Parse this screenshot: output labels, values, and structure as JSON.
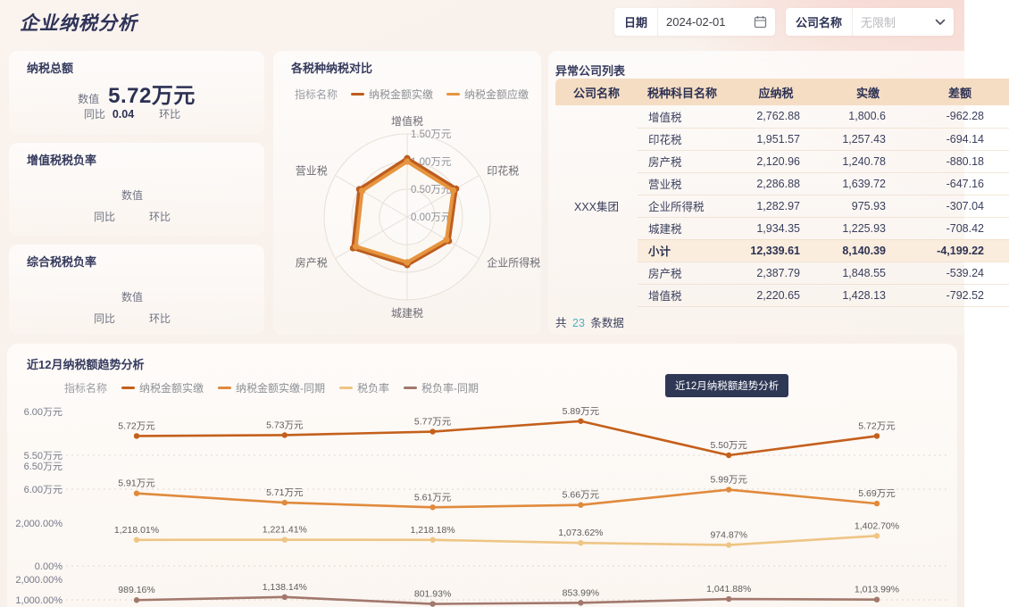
{
  "header": {
    "title": "企业纳税分析",
    "date_label": "日期",
    "date_value": "2024-02-01",
    "company_label": "公司名称",
    "company_value": "无限制"
  },
  "kpi_cards": [
    {
      "title": "纳税总额",
      "value_label": "数值",
      "value": "5.72万元",
      "yoy_label": "同比",
      "yoy_value": "0.04",
      "mom_label": "环比",
      "mom_value": ""
    },
    {
      "title": "增值税税负率",
      "value_label": "数值",
      "value": "",
      "yoy_label": "同比",
      "yoy_value": "",
      "mom_label": "环比",
      "mom_value": ""
    },
    {
      "title": "综合税税负率",
      "value_label": "数值",
      "value": "",
      "yoy_label": "同比",
      "yoy_value": "",
      "mom_label": "环比",
      "mom_value": ""
    }
  ],
  "radar_card": {
    "title": "各税种纳税对比",
    "legend_label": "指标名称"
  },
  "table_card": {
    "title": "异常公司列表",
    "columns": [
      "公司名称",
      "税种科目名称",
      "应纳税",
      "实缴",
      "差额"
    ],
    "company": "XXX集团",
    "rows": [
      {
        "tax": "增值税",
        "due": "2,762.88",
        "paid": "1,800.6",
        "diff": "-962.28"
      },
      {
        "tax": "印花税",
        "due": "1,951.57",
        "paid": "1,257.43",
        "diff": "-694.14"
      },
      {
        "tax": "房产税",
        "due": "2,120.96",
        "paid": "1,240.78",
        "diff": "-880.18"
      },
      {
        "tax": "营业税",
        "due": "2,286.88",
        "paid": "1,639.72",
        "diff": "-647.16"
      },
      {
        "tax": "企业所得税",
        "due": "1,282.97",
        "paid": "975.93",
        "diff": "-307.04"
      },
      {
        "tax": "城建税",
        "due": "1,934.35",
        "paid": "1,225.93",
        "diff": "-708.42"
      },
      {
        "tax": "小计",
        "due": "12,339.61",
        "paid": "8,140.39",
        "diff": "-4,199.22",
        "subtotal": true
      },
      {
        "tax": "房产税",
        "due": "2,387.79",
        "paid": "1,848.55",
        "diff": "-539.24"
      },
      {
        "tax": "增值税",
        "due": "2,220.65",
        "paid": "1,428.13",
        "diff": "-792.52"
      }
    ],
    "footer_prefix": "共",
    "footer_count": "23",
    "footer_suffix": "条数据"
  },
  "trend_card": {
    "title": "近12月纳税额趋势分析",
    "legend_label": "指标名称",
    "tooltip": "近12月纳税额趋势分析"
  },
  "chart_data": [
    {
      "type": "radar",
      "title": "各税种纳税对比",
      "axes": [
        "增值税",
        "印花税",
        "企业所得税",
        "城建税",
        "房产税",
        "营业税"
      ],
      "ring_labels": [
        "0.00万元",
        "0.50万元",
        "1.00万元",
        "1.50万元"
      ],
      "max": 1.5,
      "unit": "万元",
      "series": [
        {
          "name": "纳税金额实缴",
          "color": "#bd5c1e",
          "values": [
            1.06,
            1.02,
            0.87,
            0.87,
            1.13,
            1.0
          ]
        },
        {
          "name": "纳税金额应缴",
          "color": "#e6953f",
          "values": [
            1.0,
            0.96,
            0.82,
            0.82,
            1.07,
            0.94
          ]
        }
      ]
    },
    {
      "type": "line",
      "title": "近12月纳税额趋势分析",
      "x_count": 6,
      "grids": [
        {
          "top_label": "6.00万元",
          "bottom_label": "5.50万元",
          "v_top": 6.0,
          "v_bottom": 5.5
        },
        {
          "top_label": "6.50万元",
          "bottom_label": "6.00万元",
          "v_top": 6.5,
          "v_bottom": 6.0
        },
        {
          "top_label": "2,000.00%",
          "bottom_label": "0.00%",
          "v_top": 2000,
          "v_bottom": 0
        },
        {
          "top_label": "2,000.00%",
          "bottom_label": "1,000.00%",
          "v_top": 2000,
          "v_bottom": 1000
        }
      ],
      "series": [
        {
          "name": "纳税金额实缴",
          "color": "#c4601c",
          "grid": 0,
          "values": [
            5.72,
            5.73,
            5.77,
            5.89,
            5.5,
            5.72
          ],
          "labels": [
            "5.72万元",
            "5.73万元",
            "5.77万元",
            "5.89万元",
            "5.50万元",
            "5.72万元"
          ]
        },
        {
          "name": "纳税金额实缴-同期",
          "color": "#e08a3c",
          "grid": 1,
          "values": [
            5.91,
            5.71,
            5.61,
            5.66,
            5.99,
            5.69
          ],
          "labels": [
            "5.91万元",
            "5.71万元",
            "5.61万元",
            "5.66万元",
            "5.99万元",
            "5.69万元"
          ]
        },
        {
          "name": "税负率",
          "color": "#eec584",
          "grid": 2,
          "values": [
            1218.01,
            1221.41,
            1218.18,
            1073.62,
            974.87,
            1402.7
          ],
          "labels": [
            "1,218.01%",
            "1,221.41%",
            "1,218.18%",
            "1,073.62%",
            "974.87%",
            "1,402.70%"
          ]
        },
        {
          "name": "税负率-同期",
          "color": "#a2786d",
          "grid": 3,
          "values": [
            989.16,
            1138.14,
            801.93,
            853.99,
            1041.88,
            1013.99
          ],
          "labels": [
            "989.16%",
            "1,138.14%",
            "801.93%",
            "853.99%",
            "1,041.88%",
            "1,013.99%"
          ]
        }
      ]
    }
  ]
}
